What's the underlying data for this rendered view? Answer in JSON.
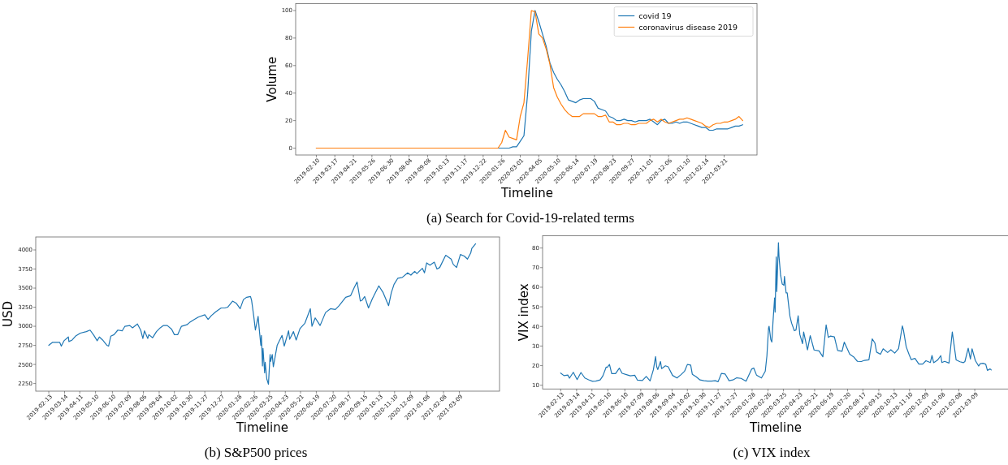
{
  "chart_data": [
    {
      "type": "line",
      "xlabel": "Timeline",
      "ylabel": "Volume",
      "annotations": [
        "(a) Search for Covid-19-related terms"
      ],
      "legend": "top right",
      "x": [
        "2019-02-10",
        "2020-01-12",
        "2020-01-19",
        "2020-01-26",
        "2020-02-02",
        "2020-02-09",
        "2020-02-16",
        "2020-02-23",
        "2020-03-01",
        "2020-03-08",
        "2020-03-15",
        "2020-03-22",
        "2020-03-29",
        "2020-04-05",
        "2020-04-12",
        "2020-04-19",
        "2020-04-26",
        "2020-05-03",
        "2020-05-10",
        "2020-05-17",
        "2020-05-24",
        "2020-05-31",
        "2020-06-07",
        "2020-06-14",
        "2020-06-21",
        "2020-06-28",
        "2020-07-05",
        "2020-07-12",
        "2020-07-19",
        "2020-07-26",
        "2020-08-02",
        "2020-08-09",
        "2020-08-16",
        "2020-08-23",
        "2020-08-30",
        "2020-09-06",
        "2020-09-13",
        "2020-09-20",
        "2020-09-27",
        "2020-10-04",
        "2020-10-11",
        "2020-10-18",
        "2020-10-25",
        "2020-11-01",
        "2020-11-08",
        "2020-11-15",
        "2020-11-22",
        "2020-11-29",
        "2020-12-06",
        "2020-12-13",
        "2020-12-20",
        "2020-12-27",
        "2021-01-03",
        "2021-01-10",
        "2021-01-17",
        "2021-01-24",
        "2021-01-31",
        "2021-02-07",
        "2021-02-14",
        "2021-02-21",
        "2021-02-28",
        "2021-03-07",
        "2021-03-14",
        "2021-03-21",
        "2021-03-28",
        "2021-04-04",
        "2021-04-11",
        "2021-04-18",
        "2021-04-25"
      ],
      "series": [
        {
          "name": "covid 19",
          "color": "#1f77b4",
          "values": [
            0,
            0,
            0,
            0,
            0,
            0,
            1,
            1,
            5,
            9,
            40,
            85,
            100,
            92,
            83,
            74,
            62,
            55,
            50,
            46,
            41,
            35,
            34,
            33,
            35,
            36,
            36,
            36,
            34,
            29,
            28,
            27,
            23,
            22,
            20,
            20,
            21,
            20,
            20,
            19,
            20,
            20,
            20,
            21,
            19,
            17,
            20,
            21,
            18,
            18,
            19,
            18,
            19,
            19,
            18,
            17,
            16,
            15,
            15,
            13,
            13,
            14,
            14,
            14,
            14,
            15,
            16,
            16,
            17
          ]
        },
        {
          "name": "coronavirus disease 2019",
          "color": "#ff7f0e",
          "values": [
            0,
            0,
            0,
            4,
            13,
            8,
            7,
            6,
            23,
            33,
            65,
            100,
            99,
            83,
            80,
            72,
            61,
            44,
            37,
            32,
            28,
            25,
            23,
            23,
            23,
            25,
            25,
            25,
            25,
            23,
            23,
            24,
            19,
            19,
            17,
            17,
            18,
            18,
            17,
            17,
            18,
            18,
            18,
            20,
            21,
            19,
            21,
            19,
            18,
            19,
            20,
            21,
            21,
            22,
            21,
            20,
            19,
            18,
            16,
            15,
            17,
            18,
            18,
            19,
            19,
            20,
            21,
            23,
            20
          ]
        }
      ],
      "xlim": [
        "2019-01-02",
        "2021-05-22"
      ],
      "ylim": [
        -5,
        105
      ],
      "xticks": [
        "2019-02-10",
        "2019-03-17",
        "2019-04-21",
        "2019-05-26",
        "2019-06-30",
        "2019-08-04",
        "2019-09-08",
        "2019-10-13",
        "2019-11-17",
        "2019-12-22",
        "2020-01-26",
        "2020-03-01",
        "2020-04-05",
        "2020-05-10",
        "2020-06-14",
        "2020-07-19",
        "2020-08-23",
        "2020-09-27",
        "2020-11-01",
        "2020-12-06",
        "2021-01-10",
        "2021-02-14",
        "2021-03-21"
      ],
      "yticks": [
        0,
        20,
        40,
        60,
        80,
        100
      ]
    },
    {
      "type": "line",
      "xlabel": "Timeline",
      "ylabel": "USD",
      "annotations": [
        "(b) S&P500 prices"
      ],
      "color": "#1f77b4",
      "x": [
        "2019-02-13",
        "2019-02-20",
        "2019-02-27",
        "2019-03-05",
        "2019-03-08",
        "2019-03-13",
        "2019-03-21",
        "2019-03-22",
        "2019-03-28",
        "2019-04-03",
        "2019-04-12",
        "2019-04-23",
        "2019-04-30",
        "2019-05-07",
        "2019-05-13",
        "2019-05-17",
        "2019-05-23",
        "2019-05-31",
        "2019-06-03",
        "2019-06-07",
        "2019-06-13",
        "2019-06-20",
        "2019-06-28",
        "2019-07-03",
        "2019-07-12",
        "2019-07-17",
        "2019-07-26",
        "2019-08-01",
        "2019-08-05",
        "2019-08-08",
        "2019-08-14",
        "2019-08-16",
        "2019-08-23",
        "2019-08-30",
        "2019-09-06",
        "2019-09-12",
        "2019-09-19",
        "2019-09-27",
        "2019-10-02",
        "2019-10-08",
        "2019-10-15",
        "2019-10-25",
        "2019-10-30",
        "2019-11-08",
        "2019-11-15",
        "2019-11-27",
        "2019-12-03",
        "2019-12-09",
        "2019-12-17",
        "2019-12-27",
        "2020-01-03",
        "2020-01-08",
        "2020-01-17",
        "2020-01-24",
        "2020-01-31",
        "2020-02-06",
        "2020-02-12",
        "2020-02-19",
        "2020-02-21",
        "2020-02-25",
        "2020-02-28",
        "2020-03-04",
        "2020-03-06",
        "2020-03-09",
        "2020-03-10",
        "2020-03-12",
        "2020-03-13",
        "2020-03-16",
        "2020-03-17",
        "2020-03-20",
        "2020-03-23",
        "2020-03-26",
        "2020-03-27",
        "2020-03-30",
        "2020-04-01",
        "2020-04-08",
        "2020-04-17",
        "2020-04-21",
        "2020-04-29",
        "2020-05-01",
        "2020-05-08",
        "2020-05-13",
        "2020-05-20",
        "2020-05-29",
        "2020-06-08",
        "2020-06-11",
        "2020-06-17",
        "2020-06-26",
        "2020-07-06",
        "2020-07-15",
        "2020-07-24",
        "2020-07-31",
        "2020-08-12",
        "2020-08-21",
        "2020-08-28",
        "2020-09-02",
        "2020-09-08",
        "2020-09-11",
        "2020-09-16",
        "2020-09-23",
        "2020-09-30",
        "2020-10-12",
        "2020-10-20",
        "2020-10-30",
        "2020-11-04",
        "2020-11-09",
        "2020-11-16",
        "2020-11-24",
        "2020-12-04",
        "2020-12-10",
        "2020-12-17",
        "2020-12-21",
        "2020-12-31",
        "2021-01-04",
        "2021-01-08",
        "2021-01-14",
        "2021-01-22",
        "2021-01-27",
        "2021-02-01",
        "2021-02-12",
        "2021-02-22",
        "2021-02-26",
        "2021-03-04",
        "2021-03-11",
        "2021-03-18",
        "2021-03-24",
        "2021-03-30",
        "2021-04-01",
        "2021-04-08"
      ],
      "values": [
        2750,
        2790,
        2790,
        2790,
        2740,
        2810,
        2860,
        2800,
        2820,
        2870,
        2910,
        2930,
        2950,
        2880,
        2810,
        2860,
        2820,
        2750,
        2740,
        2870,
        2890,
        2950,
        2940,
        3000,
        3010,
        2980,
        3030,
        2950,
        2840,
        2940,
        2840,
        2890,
        2850,
        2930,
        2980,
        3010,
        3010,
        2960,
        2890,
        2890,
        3000,
        3020,
        3050,
        3090,
        3120,
        3150,
        3090,
        3140,
        3190,
        3240,
        3240,
        3250,
        3330,
        3300,
        3230,
        3350,
        3380,
        3390,
        3340,
        3130,
        2950,
        3130,
        2970,
        2750,
        2880,
        2480,
        2710,
        2390,
        2530,
        2310,
        2240,
        2630,
        2540,
        2630,
        2470,
        2750,
        2880,
        2740,
        2940,
        2830,
        2930,
        2820,
        2970,
        3040,
        3230,
        3000,
        3110,
        3010,
        3180,
        3230,
        3220,
        3270,
        3380,
        3400,
        3510,
        3580,
        3330,
        3340,
        3390,
        3240,
        3360,
        3530,
        3440,
        3270,
        3440,
        3550,
        3630,
        3640,
        3700,
        3670,
        3720,
        3690,
        3760,
        3700,
        3830,
        3800,
        3840,
        3750,
        3770,
        3930,
        3880,
        3810,
        3770,
        3940,
        3920,
        3880,
        3960,
        4020,
        4080
      ],
      "xlim": [
        "2019-01-20",
        "2021-05-22"
      ],
      "ylim": [
        2150,
        4170
      ],
      "xticks": [
        "2019-02-13",
        "2019-03-14",
        "2019-04-11",
        "2019-05-10",
        "2019-06-10",
        "2019-07-09",
        "2019-08-06",
        "2019-09-04",
        "2019-10-02",
        "2019-10-30",
        "2019-11-27",
        "2019-12-27",
        "2020-01-28",
        "2020-02-26",
        "2020-03-25",
        "2020-04-23",
        "2020-05-21",
        "2020-06-19",
        "2020-07-20",
        "2020-08-17",
        "2020-09-15",
        "2020-10-13",
        "2020-11-10",
        "2020-12-09",
        "2021-01-08",
        "2021-02-08",
        "2021-03-09"
      ],
      "yticks": [
        2250,
        2500,
        2750,
        3000,
        3250,
        3500,
        3750,
        4000
      ]
    },
    {
      "type": "line",
      "xlabel": "Timeline",
      "ylabel": "VIX index",
      "annotations": [
        "(c) VIX index"
      ],
      "color": "#1f77b4",
      "x": [
        "2019-02-13",
        "2019-02-19",
        "2019-02-26",
        "2019-03-01",
        "2019-03-08",
        "2019-03-15",
        "2019-03-22",
        "2019-03-29",
        "2019-04-05",
        "2019-04-12",
        "2019-04-18",
        "2019-04-26",
        "2019-05-01",
        "2019-05-07",
        "2019-05-09",
        "2019-05-13",
        "2019-05-17",
        "2019-05-24",
        "2019-05-31",
        "2019-06-05",
        "2019-06-14",
        "2019-06-20",
        "2019-06-28",
        "2019-07-03",
        "2019-07-12",
        "2019-07-19",
        "2019-07-26",
        "2019-08-01",
        "2019-08-05",
        "2019-08-07",
        "2019-08-09",
        "2019-08-14",
        "2019-08-16",
        "2019-08-23",
        "2019-08-28",
        "2019-09-05",
        "2019-09-13",
        "2019-09-20",
        "2019-09-27",
        "2019-10-02",
        "2019-10-08",
        "2019-10-11",
        "2019-10-18",
        "2019-10-25",
        "2019-11-01",
        "2019-11-08",
        "2019-11-15",
        "2019-11-22",
        "2019-11-27",
        "2019-12-03",
        "2019-12-10",
        "2019-12-17",
        "2019-12-24",
        "2019-12-31",
        "2020-01-08",
        "2020-01-15",
        "2020-01-17",
        "2020-01-27",
        "2020-01-31",
        "2020-02-05",
        "2020-02-14",
        "2020-02-21",
        "2020-02-24",
        "2020-02-27",
        "2020-02-28",
        "2020-03-02",
        "2020-03-04",
        "2020-03-06",
        "2020-03-09",
        "2020-03-10",
        "2020-03-12",
        "2020-03-13",
        "2020-03-16",
        "2020-03-17",
        "2020-03-20",
        "2020-03-23",
        "2020-03-26",
        "2020-03-27",
        "2020-03-30",
        "2020-04-01",
        "2020-04-06",
        "2020-04-09",
        "2020-04-14",
        "2020-04-17",
        "2020-04-21",
        "2020-04-24",
        "2020-04-29",
        "2020-05-01",
        "2020-05-08",
        "2020-05-13",
        "2020-05-20",
        "2020-05-29",
        "2020-06-05",
        "2020-06-11",
        "2020-06-15",
        "2020-06-19",
        "2020-06-26",
        "2020-07-02",
        "2020-07-10",
        "2020-07-14",
        "2020-07-24",
        "2020-07-31",
        "2020-08-07",
        "2020-08-14",
        "2020-08-20",
        "2020-08-28",
        "2020-09-03",
        "2020-09-08",
        "2020-09-11",
        "2020-09-18",
        "2020-09-23",
        "2020-10-01",
        "2020-10-07",
        "2020-10-14",
        "2020-10-21",
        "2020-10-28",
        "2020-10-30",
        "2020-11-04",
        "2020-11-09",
        "2020-11-13",
        "2020-11-20",
        "2020-11-27",
        "2020-12-04",
        "2020-12-10",
        "2020-12-18",
        "2020-12-21",
        "2020-12-24",
        "2020-12-31",
        "2021-01-06",
        "2021-01-08",
        "2021-01-13",
        "2021-01-21",
        "2021-01-27",
        "2021-01-29",
        "2021-02-03",
        "2021-02-10",
        "2021-02-16",
        "2021-02-19",
        "2021-02-25",
        "2021-03-01",
        "2021-03-04",
        "2021-03-10",
        "2021-03-16",
        "2021-03-19",
        "2021-03-24",
        "2021-03-29",
        "2021-04-01",
        "2021-04-06",
        "2021-04-08"
      ],
      "values": [
        16.2,
        14.9,
        15.2,
        13.6,
        16.6,
        12.9,
        16.5,
        13.7,
        12.8,
        12.0,
        12.1,
        12.7,
        14.8,
        19.3,
        19.1,
        20.6,
        15.9,
        15.9,
        18.7,
        16.1,
        15.3,
        14.8,
        15.1,
        12.6,
        12.4,
        14.5,
        12.2,
        17.9,
        24.6,
        19.5,
        18.0,
        22.1,
        18.5,
        19.9,
        19.4,
        15.0,
        13.7,
        15.3,
        17.2,
        20.6,
        20.3,
        15.6,
        14.3,
        12.7,
        12.3,
        12.1,
        12.1,
        12.3,
        11.8,
        16.0,
        15.7,
        12.3,
        12.7,
        13.8,
        13.5,
        12.4,
        12.1,
        18.2,
        18.8,
        15.2,
        13.7,
        17.1,
        25.0,
        39.2,
        40.1,
        33.4,
        32.0,
        41.9,
        54.5,
        47.3,
        75.5,
        57.8,
        82.7,
        75.9,
        66.0,
        61.6,
        61.0,
        65.5,
        57.1,
        57.1,
        45.2,
        41.7,
        37.8,
        38.2,
        45.4,
        35.9,
        31.2,
        37.2,
        28.0,
        35.3,
        28.0,
        27.5,
        24.5,
        40.8,
        34.4,
        35.1,
        34.7,
        27.7,
        27.3,
        32.0,
        25.8,
        24.5,
        22.2,
        22.1,
        22.7,
        23.0,
        33.6,
        31.5,
        26.9,
        25.8,
        28.6,
        26.7,
        28.1,
        26.4,
        28.7,
        40.3,
        38.0,
        29.6,
        25.8,
        23.1,
        23.7,
        20.8,
        20.8,
        22.5,
        21.6,
        25.2,
        21.5,
        22.8,
        25.1,
        21.6,
        22.2,
        21.3,
        37.2,
        33.1,
        22.9,
        22.0,
        21.5,
        22.1,
        28.9,
        23.4,
        28.6,
        22.6,
        19.8,
        21.0,
        21.2,
        20.7,
        17.6,
        18.3,
        17.8
      ],
      "xlim": [
        "2019-01-11",
        "2021-05-13"
      ],
      "ylim": [
        8.1,
        86.3
      ],
      "xticks": [
        "2019-02-13",
        "2019-03-14",
        "2019-04-11",
        "2019-05-10",
        "2019-06-10",
        "2019-07-09",
        "2019-08-06",
        "2019-09-04",
        "2019-10-02",
        "2019-10-30",
        "2019-11-27",
        "2019-12-27",
        "2020-01-28",
        "2020-02-26",
        "2020-03-25",
        "2020-04-23",
        "2020-05-21",
        "2020-06-19",
        "2020-07-20",
        "2020-08-17",
        "2020-09-15",
        "2020-10-13",
        "2020-11-10",
        "2020-12-09",
        "2021-01-08",
        "2021-02-08",
        "2021-03-09"
      ],
      "yticks": [
        10,
        20,
        30,
        40,
        50,
        60,
        70,
        80
      ]
    }
  ]
}
